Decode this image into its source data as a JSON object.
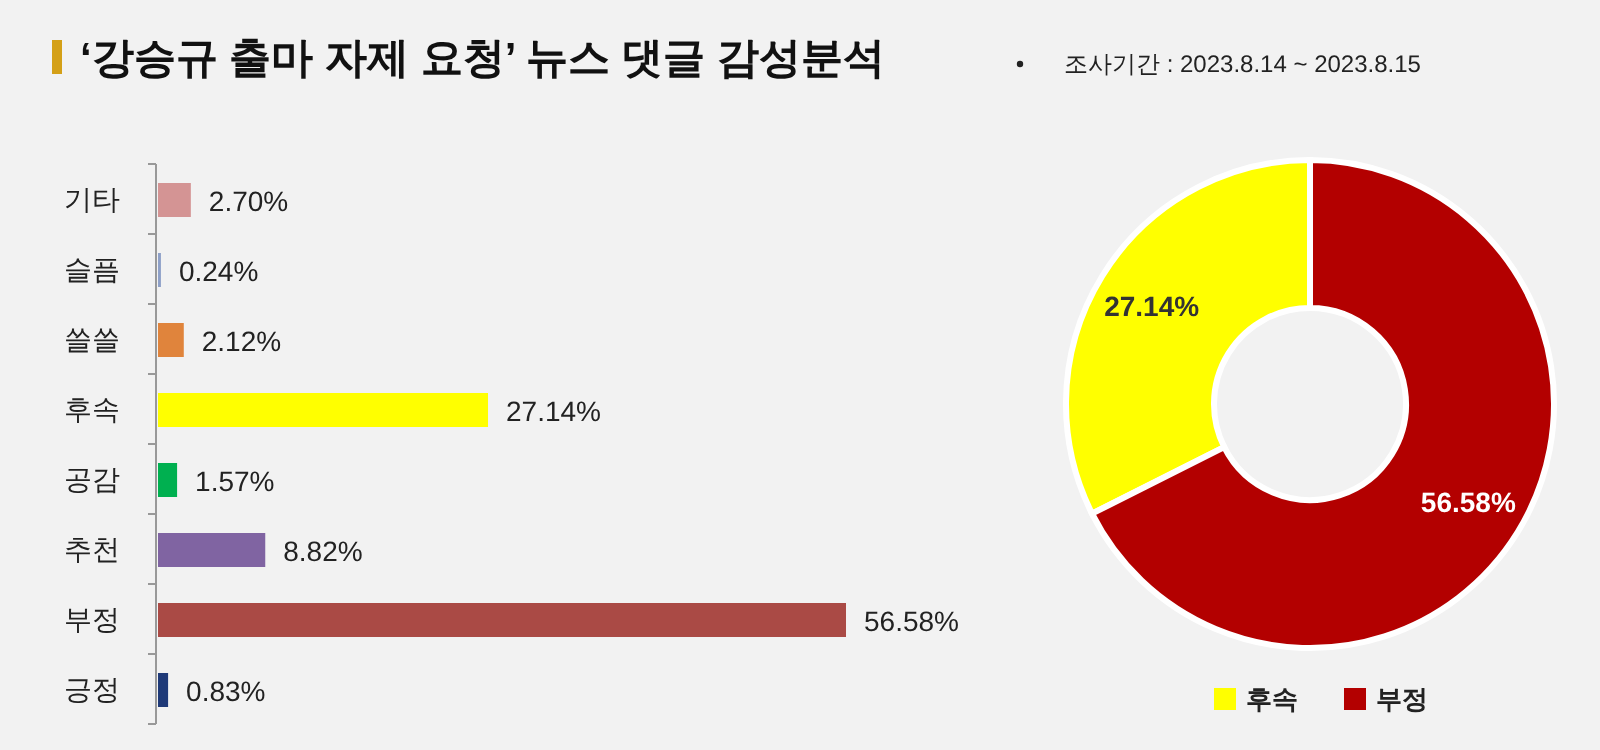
{
  "chart_data": [
    {
      "type": "bar",
      "title": "‘강승규 출마 자제 요청’ 뉴스 댓글 감성분석",
      "annotations": [
        "조사기간 : 2023.8.14 ~ 2023.8.15"
      ],
      "orientation": "horizontal",
      "categories": [
        "기타",
        "슬픔",
        "쓸쓸",
        "후속",
        "공감",
        "추천",
        "부정",
        "긍정"
      ],
      "values": [
        2.7,
        0.24,
        2.12,
        27.14,
        1.57,
        8.82,
        56.58,
        0.83
      ],
      "value_labels": [
        "2.70%",
        "0.24%",
        "2.12%",
        "27.14%",
        "1.57%",
        "8.82%",
        "56.58%",
        "0.83%"
      ],
      "colors": [
        "#d49494",
        "#8ea0c8",
        "#e0843c",
        "#ffff00",
        "#00b050",
        "#8064a2",
        "#aa4a45",
        "#1f3a78"
      ]
    },
    {
      "type": "donut",
      "categories": [
        "후속",
        "부정"
      ],
      "values": [
        27.14,
        56.58
      ],
      "value_labels": [
        "27.14%",
        "56.58%"
      ],
      "colors": [
        "#ffff00",
        "#b30000"
      ],
      "legend": "bottom"
    }
  ]
}
